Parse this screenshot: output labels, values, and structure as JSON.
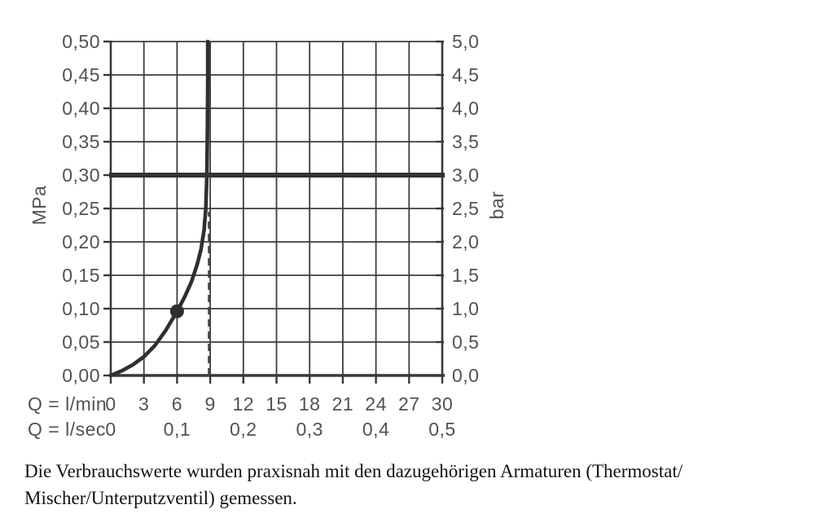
{
  "colors": {
    "background": "#ffffff",
    "grid": "#3d3d40",
    "axis": "#38383b",
    "curve": "#2f2f32",
    "marker": "#2f2f32",
    "reference_line": "#333336",
    "dashed_line": "#464649",
    "tick_label": "#525256",
    "caption_text": "#121212"
  },
  "chart_data": {
    "type": "line",
    "title": "",
    "grid": true,
    "legend": false,
    "x_axis": {
      "label": "Q = l/min",
      "range": [
        0,
        30
      ],
      "grid_step": 3,
      "tick_labels": [
        "0",
        "3",
        "6",
        "9",
        "12",
        "15",
        "18",
        "21",
        "24",
        "27",
        "30"
      ]
    },
    "x_axis_secondary": {
      "label": "Q = l/sec",
      "ticks": [
        {
          "x": 0,
          "text": "0"
        },
        {
          "x": 6,
          "text": "0,1"
        },
        {
          "x": 12,
          "text": "0,2"
        },
        {
          "x": 18,
          "text": "0,3"
        },
        {
          "x": 24,
          "text": "0,4"
        },
        {
          "x": 30,
          "text": "0,5"
        }
      ]
    },
    "y_axis_left": {
      "label": "MPa",
      "range": [
        0,
        0.5
      ],
      "grid_step": 0.05,
      "tick_labels": [
        "0,00",
        "0,05",
        "0,10",
        "0,15",
        "0,20",
        "0,25",
        "0,30",
        "0,35",
        "0,40",
        "0,45",
        "0,50"
      ]
    },
    "y_axis_right": {
      "label": "bar",
      "range": [
        0,
        5
      ],
      "grid_step": 0.5,
      "tick_labels": [
        "0,0",
        "0,5",
        "1,0",
        "1,5",
        "2,0",
        "2,5",
        "3,0",
        "3,5",
        "4,0",
        "4,5",
        "5,0"
      ]
    },
    "series": [
      {
        "name": "flow-pressure-curve",
        "points_lmin_mpa": [
          [
            0,
            0
          ],
          [
            1,
            0.007
          ],
          [
            2,
            0.016
          ],
          [
            3,
            0.028
          ],
          [
            4,
            0.045
          ],
          [
            5,
            0.068
          ],
          [
            6,
            0.096
          ],
          [
            6.7,
            0.118
          ],
          [
            7.3,
            0.14
          ],
          [
            7.8,
            0.165
          ],
          [
            8.16,
            0.188
          ],
          [
            8.45,
            0.218
          ],
          [
            8.6,
            0.25
          ],
          [
            8.7,
            0.3
          ],
          [
            8.75,
            0.37
          ],
          [
            8.78,
            0.44
          ],
          [
            8.78,
            0.5
          ]
        ]
      }
    ],
    "marker_point": {
      "x_lmin": 6,
      "y_mpa": 0.096
    },
    "reference_line_mpa": 0.3,
    "dashed_line": {
      "x_lmin": 9,
      "y_from_mpa": 0,
      "y_to_mpa": 0.245
    }
  },
  "caption": {
    "line1": "Die Verbrauchswerte wurden praxisnah mit den dazugehörigen Armaturen (Thermostat/",
    "line2": "Mischer/Unterputzventil) gemessen."
  }
}
